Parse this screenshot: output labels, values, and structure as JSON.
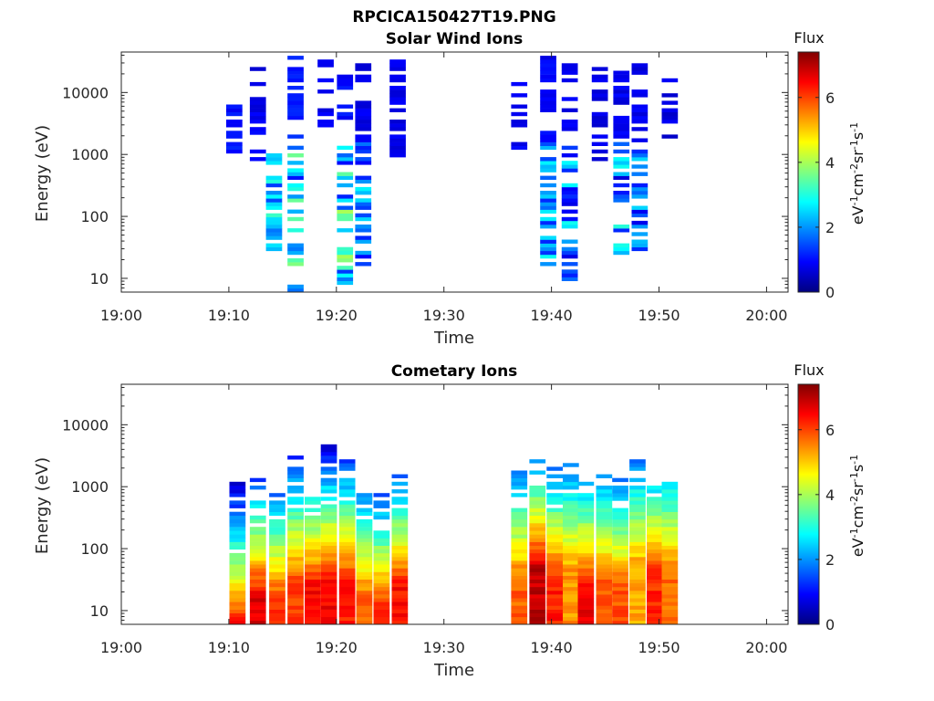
{
  "figure": {
    "title": "RPCICA150427T19.PNG"
  },
  "chart_data": [
    {
      "type": "heatmap",
      "title": "Solar Wind Ions",
      "xlabel": "Time",
      "ylabel": "Energy (eV)",
      "x_ticks": [
        "19:00",
        "19:10",
        "19:20",
        "19:30",
        "19:40",
        "19:50",
        "20:00"
      ],
      "y_ticks": [
        "10",
        "100",
        "1000",
        "10000"
      ],
      "y_scale": "log",
      "ylim": [
        6,
        45000
      ],
      "xlim_minutes_from_1900": [
        0,
        62
      ],
      "colorbar": {
        "label": "Flux",
        "unit": "eV-1cm-2sr-1s-1",
        "ticks": [
          "0",
          "2",
          "4",
          "6"
        ],
        "range": [
          0,
          7.4
        ]
      },
      "columns": [
        {
          "t": 10.5,
          "emin": 1000,
          "emax": 8000,
          "level": 0.8
        },
        {
          "t": 12.7,
          "emin": 700,
          "emax": 38000,
          "level": 0.6
        },
        {
          "t": 14.2,
          "emin": 25,
          "emax": 1000,
          "level": 1.2,
          "peak": 3.0
        },
        {
          "t": 16.2,
          "emin": 6,
          "emax": 38000,
          "level": 0.9,
          "peak": 3.5
        },
        {
          "t": 19.0,
          "emin": 2000,
          "emax": 38000,
          "level": 0.6
        },
        {
          "t": 20.8,
          "emin": 8,
          "emax": 30000,
          "level": 0.8,
          "peak": 3.8
        },
        {
          "t": 22.5,
          "emin": 15,
          "emax": 35000,
          "level": 0.6,
          "peak": 2.4
        },
        {
          "t": 25.7,
          "emin": 500,
          "emax": 38000,
          "level": 0.6
        },
        {
          "t": 37.0,
          "emin": 1200,
          "emax": 15000,
          "level": 0.6
        },
        {
          "t": 39.7,
          "emin": 15,
          "emax": 38000,
          "level": 0.7,
          "peak": 2.5
        },
        {
          "t": 41.7,
          "emin": 8,
          "emax": 30000,
          "level": 0.6,
          "peak": 2.8
        },
        {
          "t": 44.5,
          "emin": 800,
          "emax": 25000,
          "level": 0.5
        },
        {
          "t": 46.5,
          "emin": 25,
          "emax": 30000,
          "level": 0.6,
          "peak": 3.0
        },
        {
          "t": 48.2,
          "emin": 25,
          "emax": 32000,
          "level": 0.6,
          "peak": 2.6
        },
        {
          "t": 51.0,
          "emin": 1500,
          "emax": 20000,
          "level": 0.5
        }
      ]
    },
    {
      "type": "heatmap",
      "title": "Cometary Ions",
      "xlabel": "Time",
      "ylabel": "Energy (eV)",
      "x_ticks": [
        "19:00",
        "19:10",
        "19:20",
        "19:30",
        "19:40",
        "19:50",
        "20:00"
      ],
      "y_ticks": [
        "10",
        "100",
        "1000",
        "10000"
      ],
      "y_scale": "log",
      "ylim": [
        6,
        45000
      ],
      "xlim_minutes_from_1900": [
        0,
        62
      ],
      "colorbar": {
        "label": "Flux",
        "unit": "eV-1cm-2sr-1s-1",
        "ticks": [
          "0",
          "2",
          "4",
          "6"
        ],
        "range": [
          0,
          7.4
        ]
      },
      "columns": [
        {
          "t": 10.8,
          "emin": 6,
          "emax": 1500,
          "peak": 6.3,
          "mid": 40
        },
        {
          "t": 12.7,
          "emin": 6,
          "emax": 1400,
          "peak": 6.7,
          "mid": 100
        },
        {
          "t": 14.5,
          "emin": 6,
          "emax": 800,
          "peak": 6.2,
          "mid": 90
        },
        {
          "t": 16.2,
          "emin": 6,
          "emax": 3000,
          "peak": 6.0,
          "mid": 200
        },
        {
          "t": 17.8,
          "emin": 6,
          "emax": 700,
          "peak": 6.5,
          "mid": 150
        },
        {
          "t": 19.3,
          "emin": 6,
          "emax": 5000,
          "peak": 6.5,
          "mid": 200
        },
        {
          "t": 21.0,
          "emin": 6,
          "emax": 3000,
          "peak": 6.3,
          "mid": 200
        },
        {
          "t": 22.6,
          "emin": 6,
          "emax": 900,
          "peak": 5.8,
          "mid": 100
        },
        {
          "t": 24.2,
          "emin": 6,
          "emax": 1100,
          "peak": 6.5,
          "mid": 60
        },
        {
          "t": 25.9,
          "emin": 6,
          "emax": 1500,
          "peak": 6.4,
          "mid": 150
        },
        {
          "t": 37.0,
          "emin": 6,
          "emax": 2800,
          "peak": 5.8,
          "mid": 200
        },
        {
          "t": 38.7,
          "emin": 6,
          "emax": 3800,
          "peak": 6.9,
          "mid": 300
        },
        {
          "t": 40.3,
          "emin": 6,
          "emax": 2500,
          "peak": 6.3,
          "mid": 200
        },
        {
          "t": 41.8,
          "emin": 6,
          "emax": 2700,
          "peak": 5.4,
          "mid": 300
        },
        {
          "t": 43.2,
          "emin": 6,
          "emax": 1200,
          "peak": 6.6,
          "mid": 150
        },
        {
          "t": 44.9,
          "emin": 6,
          "emax": 1500,
          "peak": 5.8,
          "mid": 200
        },
        {
          "t": 46.4,
          "emin": 6,
          "emax": 2000,
          "peak": 5.9,
          "mid": 150
        },
        {
          "t": 48.0,
          "emin": 6,
          "emax": 2800,
          "peak": 5.2,
          "mid": 400
        },
        {
          "t": 49.6,
          "emin": 6,
          "emax": 1000,
          "peak": 6.2,
          "mid": 250
        },
        {
          "t": 51.0,
          "emin": 6,
          "emax": 1300,
          "peak": 5.7,
          "mid": 300
        }
      ]
    }
  ]
}
